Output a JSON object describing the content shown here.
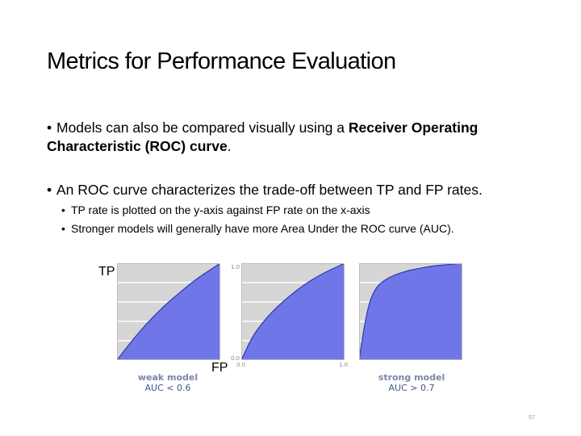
{
  "slide": {
    "title": "Metrics for Performance Evaluation",
    "bullets": [
      {
        "prefix": "Models can also be compared visually using a ",
        "bold": "Receiver Operating Characteristic (ROC) curve",
        "suffix": "."
      },
      {
        "text": "An ROC curve characterizes the trade-off between TP and FP rates."
      }
    ],
    "sub_bullets": [
      "TP rate is plotted on the y-axis against FP rate on the x-axis",
      "Stronger models will generally have more Area Under the ROC curve (AUC)."
    ],
    "page_number": "57"
  },
  "figure": {
    "y_axis_label": "TP",
    "x_axis_label": "FP",
    "ticks": {
      "top": "1.0",
      "bottom": "0.0",
      "x_start": "0.0",
      "x_end": "1.0"
    },
    "captions": [
      {
        "line1": "weak model",
        "line2": "AUC < 0.6"
      },
      {
        "line1": "strong model",
        "line2": "AUC > 0.7"
      }
    ],
    "colors": {
      "fill": "#6f76e8",
      "outline": "#2e3aa8",
      "panel": "#d6d6d6",
      "grid": "#ffffff"
    }
  },
  "chart_data": [
    {
      "type": "area",
      "title": "weak model",
      "subtitle": "AUC < 0.6",
      "xlabel": "FP",
      "ylabel": "TP",
      "xlim": [
        0,
        1
      ],
      "ylim": [
        0,
        1
      ],
      "x": [
        0,
        0.1,
        0.2,
        0.3,
        0.4,
        0.5,
        0.6,
        0.7,
        0.8,
        0.9,
        1.0
      ],
      "y": [
        0,
        0.14,
        0.27,
        0.39,
        0.5,
        0.6,
        0.69,
        0.78,
        0.86,
        0.93,
        1.0
      ]
    },
    {
      "type": "area",
      "title": "",
      "xlabel": "",
      "ylabel": "",
      "xlim": [
        0,
        1
      ],
      "ylim": [
        0,
        1
      ],
      "x": [
        0,
        0.1,
        0.2,
        0.3,
        0.4,
        0.5,
        0.6,
        0.7,
        0.8,
        0.9,
        1.0
      ],
      "y": [
        0,
        0.23,
        0.38,
        0.5,
        0.6,
        0.69,
        0.77,
        0.84,
        0.9,
        0.95,
        1.0
      ]
    },
    {
      "type": "area",
      "title": "strong model",
      "subtitle": "AUC > 0.7",
      "xlabel": "",
      "ylabel": "",
      "xlim": [
        0,
        1
      ],
      "ylim": [
        0,
        1
      ],
      "x": [
        0,
        0.05,
        0.1,
        0.15,
        0.2,
        0.3,
        0.4,
        0.5,
        0.6,
        0.7,
        0.8,
        0.9,
        1.0
      ],
      "y": [
        0,
        0.35,
        0.6,
        0.72,
        0.79,
        0.86,
        0.9,
        0.93,
        0.95,
        0.97,
        0.98,
        0.99,
        1.0
      ]
    }
  ]
}
